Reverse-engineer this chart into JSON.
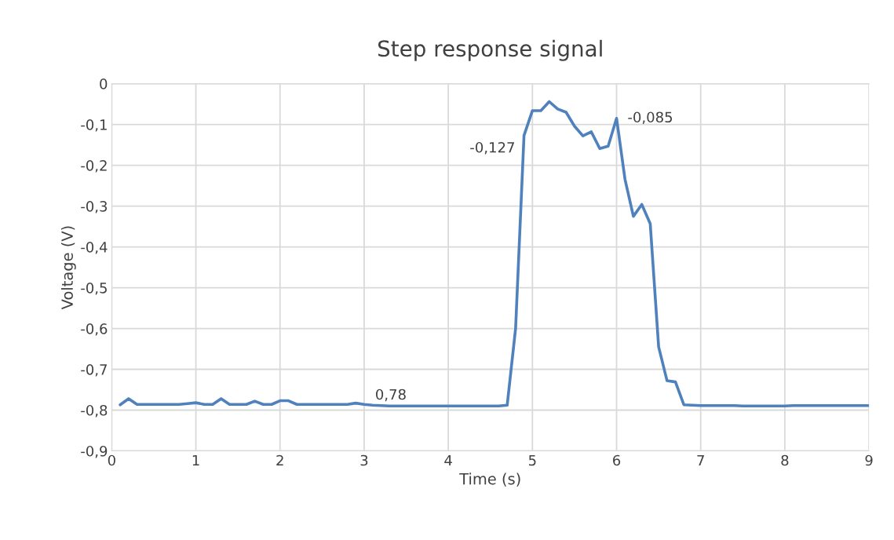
{
  "chart_data": {
    "type": "line",
    "title": "Step response signal",
    "xlabel": "Time (s)",
    "ylabel": "Voltage (V)",
    "x": [
      0.1,
      0.2,
      0.3,
      0.4,
      0.5,
      0.6,
      0.7,
      0.8,
      0.9,
      1.0,
      1.1,
      1.2,
      1.3,
      1.4,
      1.5,
      1.6,
      1.7,
      1.8,
      1.9,
      2.0,
      2.1,
      2.2,
      2.3,
      2.4,
      2.5,
      2.6,
      2.7,
      2.8,
      2.9,
      3.0,
      3.1,
      3.2,
      3.3,
      3.4,
      3.5,
      3.6,
      3.7,
      3.8,
      3.9,
      4.0,
      4.1,
      4.2,
      4.3,
      4.4,
      4.5,
      4.6,
      4.7,
      4.8,
      4.9,
      5.0,
      5.1,
      5.2,
      5.3,
      5.4,
      5.5,
      5.6,
      5.7,
      5.8,
      5.9,
      6.0,
      6.1,
      6.2,
      6.3,
      6.4,
      6.5,
      6.6,
      6.7,
      6.8,
      6.9,
      7.0,
      7.1,
      7.2,
      7.3,
      7.4,
      7.5,
      7.6,
      7.7,
      7.8,
      7.9,
      8.0,
      8.1,
      8.2,
      8.3,
      8.4,
      8.5,
      8.6,
      8.7,
      8.8,
      8.9,
      9.0
    ],
    "series": [
      {
        "color": "#4f81bd",
        "values": [
          -0.787,
          -0.772,
          -0.786,
          -0.786,
          -0.786,
          -0.786,
          -0.786,
          -0.786,
          -0.784,
          -0.782,
          -0.786,
          -0.786,
          -0.772,
          -0.786,
          -0.786,
          -0.786,
          -0.778,
          -0.786,
          -0.786,
          -0.777,
          -0.777,
          -0.786,
          -0.786,
          -0.786,
          -0.786,
          -0.786,
          -0.786,
          -0.786,
          -0.783,
          -0.786,
          -0.788,
          -0.789,
          -0.79,
          -0.79,
          -0.79,
          -0.79,
          -0.79,
          -0.79,
          -0.79,
          -0.79,
          -0.79,
          -0.79,
          -0.79,
          -0.79,
          -0.79,
          -0.79,
          -0.788,
          -0.6,
          -0.127,
          -0.066,
          -0.066,
          -0.044,
          -0.062,
          -0.07,
          -0.104,
          -0.128,
          -0.118,
          -0.159,
          -0.153,
          -0.085,
          -0.234,
          -0.325,
          -0.296,
          -0.343,
          -0.645,
          -0.728,
          -0.731,
          -0.787,
          -0.788,
          -0.789,
          -0.789,
          -0.789,
          -0.789,
          -0.789,
          -0.79,
          -0.79,
          -0.79,
          -0.79,
          -0.79,
          -0.79,
          -0.789,
          -0.789,
          -0.789,
          -0.789,
          -0.789,
          -0.789,
          -0.789,
          -0.789,
          -0.789,
          -0.789
        ]
      }
    ],
    "annotations": [
      {
        "text": "0,78",
        "x": 3.0,
        "y": -0.786
      },
      {
        "text": "-0,127",
        "x": 4.9,
        "y": -0.127
      },
      {
        "text": "-0,085",
        "x": 6.0,
        "y": -0.085
      }
    ],
    "xlim": [
      0,
      9
    ],
    "xticks": [
      0,
      1,
      2,
      3,
      4,
      5,
      6,
      7,
      8,
      9
    ],
    "ylim": [
      -0.9,
      0
    ],
    "yticks": [
      {
        "value": -0.9,
        "label": "-0,9"
      },
      {
        "value": -0.8,
        "label": "-0,8"
      },
      {
        "value": -0.7,
        "label": "-0,7"
      },
      {
        "value": -0.6,
        "label": "-0,6"
      },
      {
        "value": -0.5,
        "label": "-0,5"
      },
      {
        "value": -0.4,
        "label": "-0,4"
      },
      {
        "value": -0.3,
        "label": "-0,3"
      },
      {
        "value": -0.2,
        "label": "-0,2"
      },
      {
        "value": -0.1,
        "label": "-0,1"
      },
      0
    ],
    "grid": true,
    "marker": "none",
    "line_style": "solid"
  }
}
